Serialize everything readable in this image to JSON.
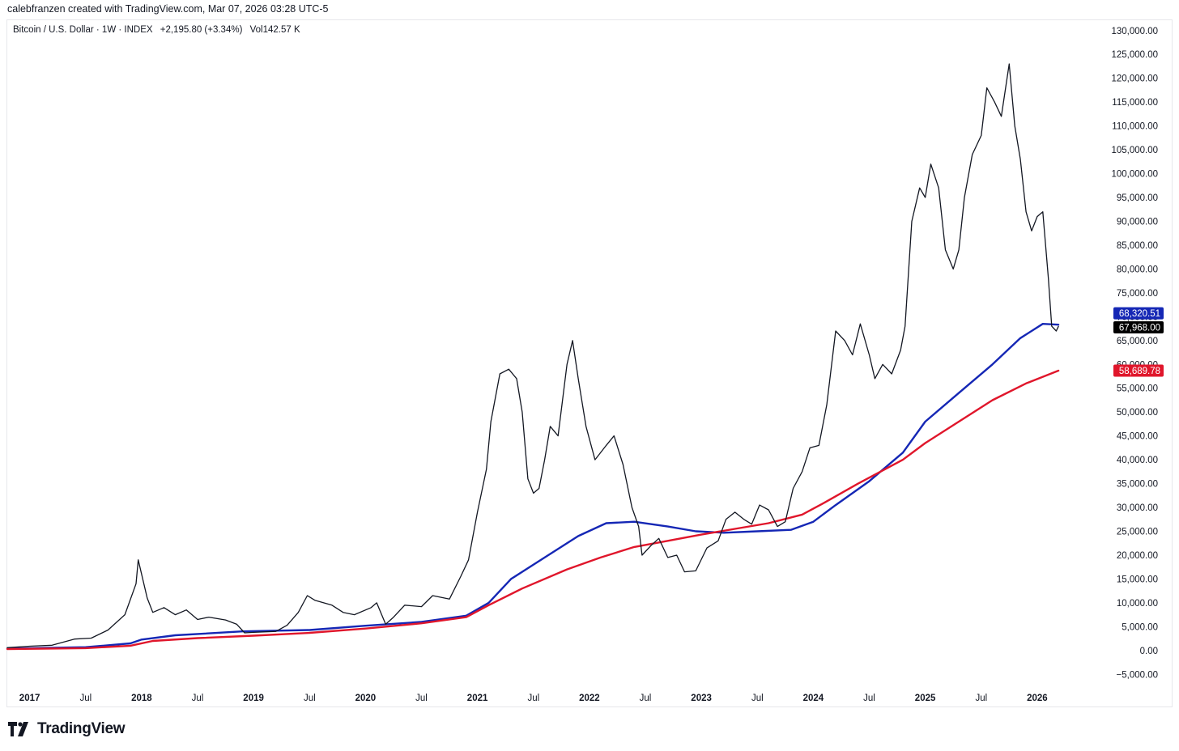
{
  "header": {
    "credit": "calebfranzen created with TradingView.com, Mar 07, 2026 03:28 UTC-5"
  },
  "legend": {
    "symbol": "Bitcoin / U.S. Dollar · 1W · INDEX",
    "change": "+2,195.80 (+3.34%)",
    "volume": "Vol142.57 K"
  },
  "footer": {
    "brand": "TradingView"
  },
  "chart_data": {
    "type": "line",
    "series_kind": "candlestick-weekly",
    "y_axis": {
      "position": "right",
      "ylim": [
        -7500,
        132000
      ],
      "ticks": [
        -5000,
        0,
        5000,
        10000,
        15000,
        20000,
        25000,
        30000,
        35000,
        40000,
        45000,
        50000,
        55000,
        60000,
        65000,
        70000,
        75000,
        80000,
        85000,
        90000,
        95000,
        100000,
        105000,
        110000,
        115000,
        120000,
        125000,
        130000
      ],
      "tick_labels": [
        "−5,000.00",
        "0.00",
        "5,000.00",
        "10,000.00",
        "15,000.00",
        "20,000.00",
        "25,000.00",
        "30,000.00",
        "35,000.00",
        "40,000.00",
        "45,000.00",
        "50,000.00",
        "55,000.00",
        "60,000.00",
        "65,000.00",
        "70,000.00",
        "75,000.00",
        "80,000.00",
        "85,000.00",
        "90,000.00",
        "95,000.00",
        "100,000.00",
        "105,000.00",
        "110,000.00",
        "115,000.00",
        "120,000.00",
        "125,000.00",
        "130,000.00"
      ]
    },
    "x_axis": {
      "range": [
        2016.8,
        2026.5
      ],
      "ticks": [
        {
          "t": 2017.0,
          "label": "2017",
          "bold": true
        },
        {
          "t": 2017.5,
          "label": "Jul",
          "bold": false
        },
        {
          "t": 2018.0,
          "label": "2018",
          "bold": true
        },
        {
          "t": 2018.5,
          "label": "Jul",
          "bold": false
        },
        {
          "t": 2019.0,
          "label": "2019",
          "bold": true
        },
        {
          "t": 2019.5,
          "label": "Jul",
          "bold": false
        },
        {
          "t": 2020.0,
          "label": "2020",
          "bold": true
        },
        {
          "t": 2020.5,
          "label": "Jul",
          "bold": false
        },
        {
          "t": 2021.0,
          "label": "2021",
          "bold": true
        },
        {
          "t": 2021.5,
          "label": "Jul",
          "bold": false
        },
        {
          "t": 2022.0,
          "label": "2022",
          "bold": true
        },
        {
          "t": 2022.5,
          "label": "Jul",
          "bold": false
        },
        {
          "t": 2023.0,
          "label": "2023",
          "bold": true
        },
        {
          "t": 2023.5,
          "label": "Jul",
          "bold": false
        },
        {
          "t": 2024.0,
          "label": "2024",
          "bold": true
        },
        {
          "t": 2024.5,
          "label": "Jul",
          "bold": false
        },
        {
          "t": 2025.0,
          "label": "2025",
          "bold": true
        },
        {
          "t": 2025.5,
          "label": "Jul",
          "bold": false
        },
        {
          "t": 2026.0,
          "label": "2026",
          "bold": true
        }
      ]
    },
    "grid": false,
    "series": [
      {
        "kind": "price",
        "color": "#131722",
        "points": [
          [
            2016.8,
            600
          ],
          [
            2017.0,
            900
          ],
          [
            2017.2,
            1100
          ],
          [
            2017.4,
            2400
          ],
          [
            2017.55,
            2600
          ],
          [
            2017.7,
            4300
          ],
          [
            2017.85,
            7500
          ],
          [
            2017.95,
            14000
          ],
          [
            2017.97,
            19000
          ],
          [
            2018.05,
            11000
          ],
          [
            2018.1,
            8000
          ],
          [
            2018.2,
            9000
          ],
          [
            2018.3,
            7500
          ],
          [
            2018.4,
            8500
          ],
          [
            2018.5,
            6500
          ],
          [
            2018.6,
            7000
          ],
          [
            2018.75,
            6400
          ],
          [
            2018.85,
            5500
          ],
          [
            2018.92,
            3700
          ],
          [
            2019.0,
            3800
          ],
          [
            2019.2,
            4000
          ],
          [
            2019.3,
            5300
          ],
          [
            2019.4,
            8000
          ],
          [
            2019.48,
            11500
          ],
          [
            2019.55,
            10500
          ],
          [
            2019.7,
            9500
          ],
          [
            2019.8,
            8000
          ],
          [
            2019.9,
            7500
          ],
          [
            2020.05,
            9000
          ],
          [
            2020.1,
            10000
          ],
          [
            2020.18,
            5500
          ],
          [
            2020.25,
            7000
          ],
          [
            2020.35,
            9500
          ],
          [
            2020.5,
            9200
          ],
          [
            2020.6,
            11500
          ],
          [
            2020.75,
            10800
          ],
          [
            2020.85,
            15500
          ],
          [
            2020.92,
            19000
          ],
          [
            2021.0,
            29000
          ],
          [
            2021.08,
            38000
          ],
          [
            2021.12,
            48000
          ],
          [
            2021.2,
            58000
          ],
          [
            2021.28,
            59000
          ],
          [
            2021.35,
            57000
          ],
          [
            2021.4,
            50000
          ],
          [
            2021.45,
            36000
          ],
          [
            2021.5,
            33000
          ],
          [
            2021.55,
            34000
          ],
          [
            2021.6,
            40000
          ],
          [
            2021.65,
            47000
          ],
          [
            2021.72,
            45000
          ],
          [
            2021.8,
            60000
          ],
          [
            2021.85,
            65000
          ],
          [
            2021.9,
            57000
          ],
          [
            2021.97,
            47000
          ],
          [
            2022.05,
            40000
          ],
          [
            2022.15,
            43000
          ],
          [
            2022.22,
            45000
          ],
          [
            2022.3,
            39000
          ],
          [
            2022.38,
            30000
          ],
          [
            2022.44,
            26000
          ],
          [
            2022.47,
            20000
          ],
          [
            2022.55,
            22000
          ],
          [
            2022.62,
            23500
          ],
          [
            2022.7,
            19500
          ],
          [
            2022.78,
            20000
          ],
          [
            2022.85,
            16500
          ],
          [
            2022.95,
            16700
          ],
          [
            2023.05,
            21500
          ],
          [
            2023.15,
            23000
          ],
          [
            2023.22,
            27500
          ],
          [
            2023.3,
            29000
          ],
          [
            2023.38,
            27500
          ],
          [
            2023.45,
            26500
          ],
          [
            2023.52,
            30500
          ],
          [
            2023.6,
            29500
          ],
          [
            2023.68,
            26000
          ],
          [
            2023.75,
            27000
          ],
          [
            2023.82,
            34000
          ],
          [
            2023.9,
            37500
          ],
          [
            2023.97,
            42500
          ],
          [
            2024.05,
            43000
          ],
          [
            2024.12,
            51500
          ],
          [
            2024.2,
            67000
          ],
          [
            2024.28,
            65000
          ],
          [
            2024.35,
            62000
          ],
          [
            2024.42,
            68500
          ],
          [
            2024.5,
            62000
          ],
          [
            2024.55,
            57000
          ],
          [
            2024.62,
            60000
          ],
          [
            2024.7,
            58000
          ],
          [
            2024.78,
            63000
          ],
          [
            2024.82,
            68000
          ],
          [
            2024.88,
            90000
          ],
          [
            2024.95,
            97000
          ],
          [
            2025.0,
            95000
          ],
          [
            2025.05,
            102000
          ],
          [
            2025.12,
            97000
          ],
          [
            2025.18,
            84000
          ],
          [
            2025.25,
            80000
          ],
          [
            2025.3,
            84000
          ],
          [
            2025.35,
            95000
          ],
          [
            2025.42,
            104000
          ],
          [
            2025.5,
            108000
          ],
          [
            2025.55,
            118000
          ],
          [
            2025.62,
            115000
          ],
          [
            2025.68,
            112000
          ],
          [
            2025.75,
            123000
          ],
          [
            2025.8,
            110000
          ],
          [
            2025.85,
            103000
          ],
          [
            2025.9,
            92000
          ],
          [
            2025.95,
            88000
          ],
          [
            2026.0,
            91000
          ],
          [
            2026.05,
            92000
          ],
          [
            2026.1,
            78000
          ],
          [
            2026.13,
            68000
          ],
          [
            2026.17,
            67000
          ],
          [
            2026.19,
            67968
          ]
        ]
      },
      {
        "kind": "moving-average",
        "color": "#1527b5",
        "last_value": "68,320.51",
        "points": [
          [
            2016.8,
            400
          ],
          [
            2017.5,
            700
          ],
          [
            2017.9,
            1500
          ],
          [
            2018.0,
            2300
          ],
          [
            2018.3,
            3200
          ],
          [
            2018.9,
            4000
          ],
          [
            2019.5,
            4300
          ],
          [
            2020.0,
            5200
          ],
          [
            2020.5,
            6000
          ],
          [
            2020.9,
            7300
          ],
          [
            2021.1,
            10000
          ],
          [
            2021.3,
            15000
          ],
          [
            2021.6,
            19500
          ],
          [
            2021.9,
            24000
          ],
          [
            2022.15,
            26700
          ],
          [
            2022.4,
            27000
          ],
          [
            2022.7,
            26000
          ],
          [
            2022.95,
            25000
          ],
          [
            2023.2,
            24700
          ],
          [
            2023.5,
            25000
          ],
          [
            2023.8,
            25300
          ],
          [
            2024.0,
            27000
          ],
          [
            2024.2,
            30500
          ],
          [
            2024.5,
            35500
          ],
          [
            2024.8,
            41500
          ],
          [
            2025.0,
            48000
          ],
          [
            2025.3,
            54000
          ],
          [
            2025.6,
            60000
          ],
          [
            2025.85,
            65500
          ],
          [
            2026.05,
            68500
          ],
          [
            2026.19,
            68320
          ]
        ]
      },
      {
        "kind": "moving-average",
        "color": "#e0162b",
        "last_value": "58,689.78",
        "points": [
          [
            2016.8,
            300
          ],
          [
            2017.5,
            500
          ],
          [
            2017.9,
            1000
          ],
          [
            2018.1,
            2000
          ],
          [
            2018.5,
            2600
          ],
          [
            2019.0,
            3100
          ],
          [
            2019.5,
            3700
          ],
          [
            2020.0,
            4600
          ],
          [
            2020.5,
            5700
          ],
          [
            2020.9,
            7000
          ],
          [
            2021.1,
            9500
          ],
          [
            2021.4,
            13000
          ],
          [
            2021.8,
            17000
          ],
          [
            2022.1,
            19500
          ],
          [
            2022.4,
            21700
          ],
          [
            2022.7,
            23000
          ],
          [
            2023.0,
            24300
          ],
          [
            2023.3,
            25500
          ],
          [
            2023.6,
            26700
          ],
          [
            2023.9,
            28500
          ],
          [
            2024.1,
            31000
          ],
          [
            2024.4,
            35000
          ],
          [
            2024.8,
            40000
          ],
          [
            2025.0,
            43500
          ],
          [
            2025.3,
            48000
          ],
          [
            2025.6,
            52500
          ],
          [
            2025.9,
            56000
          ],
          [
            2026.19,
            58690
          ]
        ]
      }
    ],
    "price_label": {
      "text": "67,968.00",
      "value": 67968
    }
  }
}
